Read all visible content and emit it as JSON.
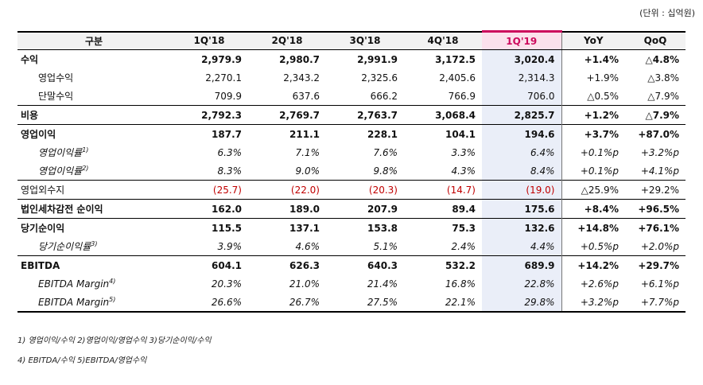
{
  "unit_label": "(단위 : 십억원)",
  "headers": [
    "구분",
    "1Q'18",
    "2Q'18",
    "3Q'18",
    "4Q'18",
    "1Q'19",
    "YoY",
    "QoQ"
  ],
  "rows": [
    {
      "label": "수익",
      "sup": "",
      "values": [
        "2,979.9",
        "2,980.7",
        "2,991.9",
        "3,172.5",
        "3,020.4"
      ],
      "yoy": "+1.4%",
      "qoq": "△4.8%"
    },
    {
      "label": "영업수익",
      "sup": "",
      "values": [
        "2,270.1",
        "2,343.2",
        "2,325.6",
        "2,405.6",
        "2,314.3"
      ],
      "yoy": "+1.9%",
      "qoq": "△3.8%"
    },
    {
      "label": "단말수익",
      "sup": "",
      "values": [
        "709.9",
        "637.6",
        "666.2",
        "766.9",
        "706.0"
      ],
      "yoy": "△0.5%",
      "qoq": "△7.9%"
    },
    {
      "label": "비용",
      "sup": "",
      "values": [
        "2,792.3",
        "2,769.7",
        "2,763.7",
        "3,068.4",
        "2,825.7"
      ],
      "yoy": "+1.2%",
      "qoq": "△7.9%"
    },
    {
      "label": "영업이익",
      "sup": "",
      "values": [
        "187.7",
        "211.1",
        "228.1",
        "104.1",
        "194.6"
      ],
      "yoy": "+3.7%",
      "qoq": "+87.0%"
    },
    {
      "label": "영업이익률",
      "sup": "1)",
      "values": [
        "6.3%",
        "7.1%",
        "7.6%",
        "3.3%",
        "6.4%"
      ],
      "yoy": "+0.1%p",
      "qoq": "+3.2%p"
    },
    {
      "label": "영업이익률",
      "sup": "2)",
      "values": [
        "8.3%",
        "9.0%",
        "9.8%",
        "4.3%",
        "8.4%"
      ],
      "yoy": "+0.1%p",
      "qoq": "+4.1%p"
    },
    {
      "label": "영업외수지",
      "sup": "",
      "values": [
        "(25.7)",
        "(22.0)",
        "(20.3)",
        "(14.7)",
        "(19.0)"
      ],
      "yoy": "△25.9%",
      "qoq": "+29.2%"
    },
    {
      "label": "법인세차감전 순이익",
      "sup": "",
      "values": [
        "162.0",
        "189.0",
        "207.9",
        "89.4",
        "175.6"
      ],
      "yoy": "+8.4%",
      "qoq": "+96.5%"
    },
    {
      "label": "당기순이익",
      "sup": "",
      "values": [
        "115.5",
        "137.1",
        "153.8",
        "75.3",
        "132.6"
      ],
      "yoy": "+14.8%",
      "qoq": "+76.1%"
    },
    {
      "label": "당기순이익률",
      "sup": "3)",
      "values": [
        "3.9%",
        "4.6%",
        "5.1%",
        "2.4%",
        "4.4%"
      ],
      "yoy": "+0.5%p",
      "qoq": "+2.0%p"
    },
    {
      "label": "EBITDA",
      "sup": "",
      "values": [
        "604.1",
        "626.3",
        "640.3",
        "532.2",
        "689.9"
      ],
      "yoy": "+14.2%",
      "qoq": "+29.7%"
    },
    {
      "label": "EBITDA Margin",
      "sup": "4)",
      "values": [
        "20.3%",
        "21.0%",
        "21.4%",
        "16.8%",
        "22.8%"
      ],
      "yoy": "+2.6%p",
      "qoq": "+6.1%p"
    },
    {
      "label": "EBITDA Margin",
      "sup": "5)",
      "values": [
        "26.6%",
        "26.7%",
        "27.5%",
        "22.1%",
        "29.8%"
      ],
      "yoy": "+3.2%p",
      "qoq": "+7.7%p"
    }
  ],
  "footnotes": [
    "1) 영업이익/수익  2)영업이익/영업수익  3)당기순이익/수익",
    "4) EBITDA/수익  5)EBITDA/영업수익"
  ],
  "colors": {
    "highlight_header": "#cc0a5d",
    "highlight_column": "#eaeef8",
    "negative": "#c00000"
  }
}
